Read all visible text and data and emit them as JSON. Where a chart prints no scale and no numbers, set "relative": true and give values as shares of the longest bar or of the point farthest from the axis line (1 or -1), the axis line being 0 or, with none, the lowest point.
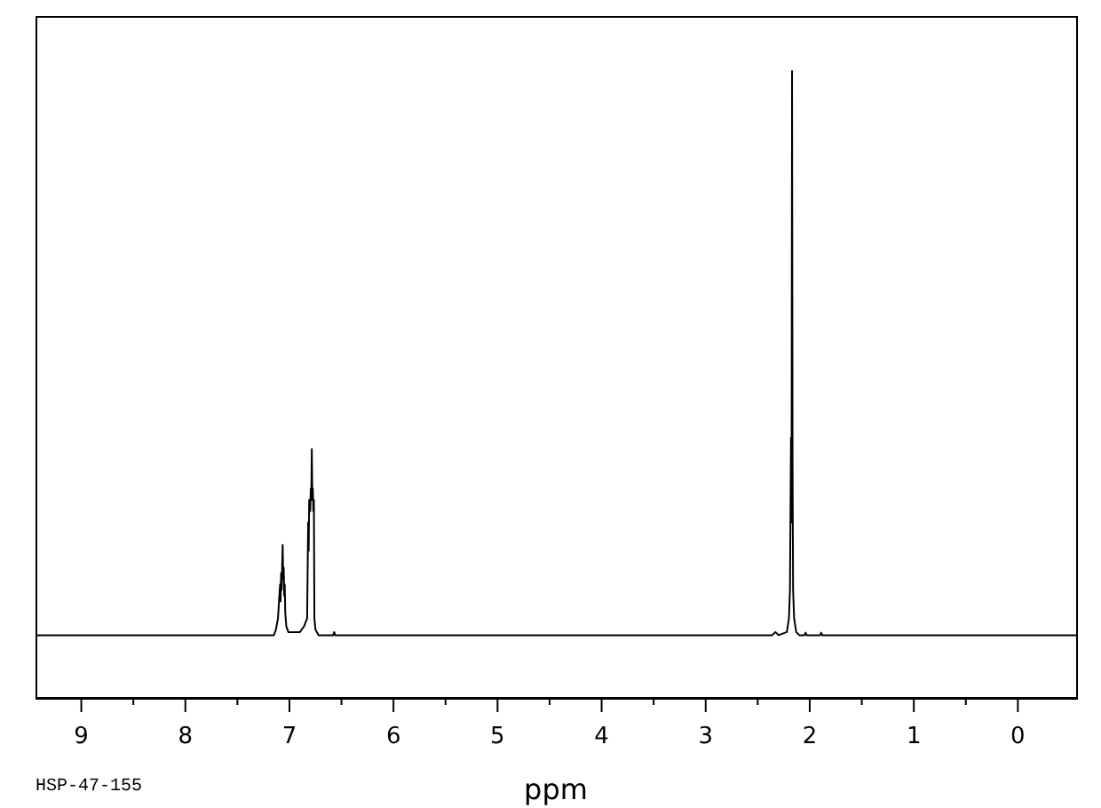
{
  "chart_data": {
    "type": "line",
    "xlabel": "ppm",
    "relative": true,
    "color": "#000000",
    "annotations": [
      "HSP-47-155"
    ],
    "xlim": [
      9.44,
      -0.56
    ],
    "xticks": [
      9,
      {
        "value": 8.5,
        "label": null
      },
      8,
      {
        "value": 7.5,
        "label": null
      },
      7,
      {
        "value": 6.5,
        "label": null
      },
      6,
      {
        "value": 5.5,
        "label": null
      },
      5,
      {
        "value": 4.5,
        "label": null
      },
      4,
      {
        "value": 3.5,
        "label": null
      },
      3,
      {
        "value": 2.5,
        "label": null
      },
      2,
      {
        "value": 1.5,
        "label": null
      },
      1,
      {
        "value": 0.5,
        "label": null
      },
      0
    ],
    "x": [
      9.44,
      7.15,
      7.13,
      7.11,
      7.1,
      7.09,
      7.085,
      7.08,
      7.075,
      7.07,
      7.065,
      7.06,
      7.055,
      7.05,
      7.045,
      7.04,
      7.03,
      7.01,
      6.9,
      6.86,
      6.83,
      6.82,
      6.815,
      6.81,
      6.8,
      6.795,
      6.79,
      6.785,
      6.78,
      6.775,
      6.77,
      6.765,
      6.76,
      6.75,
      6.72,
      6.58,
      6.57,
      6.56,
      2.36,
      2.33,
      2.3,
      2.22,
      2.2,
      2.19,
      2.18,
      2.175,
      2.17,
      2.165,
      2.16,
      2.15,
      2.13,
      2.1,
      2.05,
      2.04,
      2.03,
      1.9,
      1.89,
      1.88,
      -0.56
    ],
    "values": [
      0.1,
      0.1,
      0.109,
      0.127,
      0.154,
      0.181,
      0.154,
      0.199,
      0.172,
      0.208,
      0.244,
      0.19,
      0.208,
      0.163,
      0.181,
      0.136,
      0.114,
      0.105,
      0.105,
      0.114,
      0.127,
      0.28,
      0.235,
      0.316,
      0.298,
      0.334,
      0.316,
      0.397,
      0.325,
      0.334,
      0.298,
      0.316,
      0.127,
      0.109,
      0.1,
      0.1,
      0.105,
      0.1,
      0.1,
      0.105,
      0.1,
      0.105,
      0.127,
      0.172,
      0.415,
      0.28,
      1.0,
      0.37,
      0.172,
      0.127,
      0.105,
      0.1,
      0.1,
      0.104,
      0.1,
      0.1,
      0.104,
      0.1,
      0.1
    ]
  }
}
